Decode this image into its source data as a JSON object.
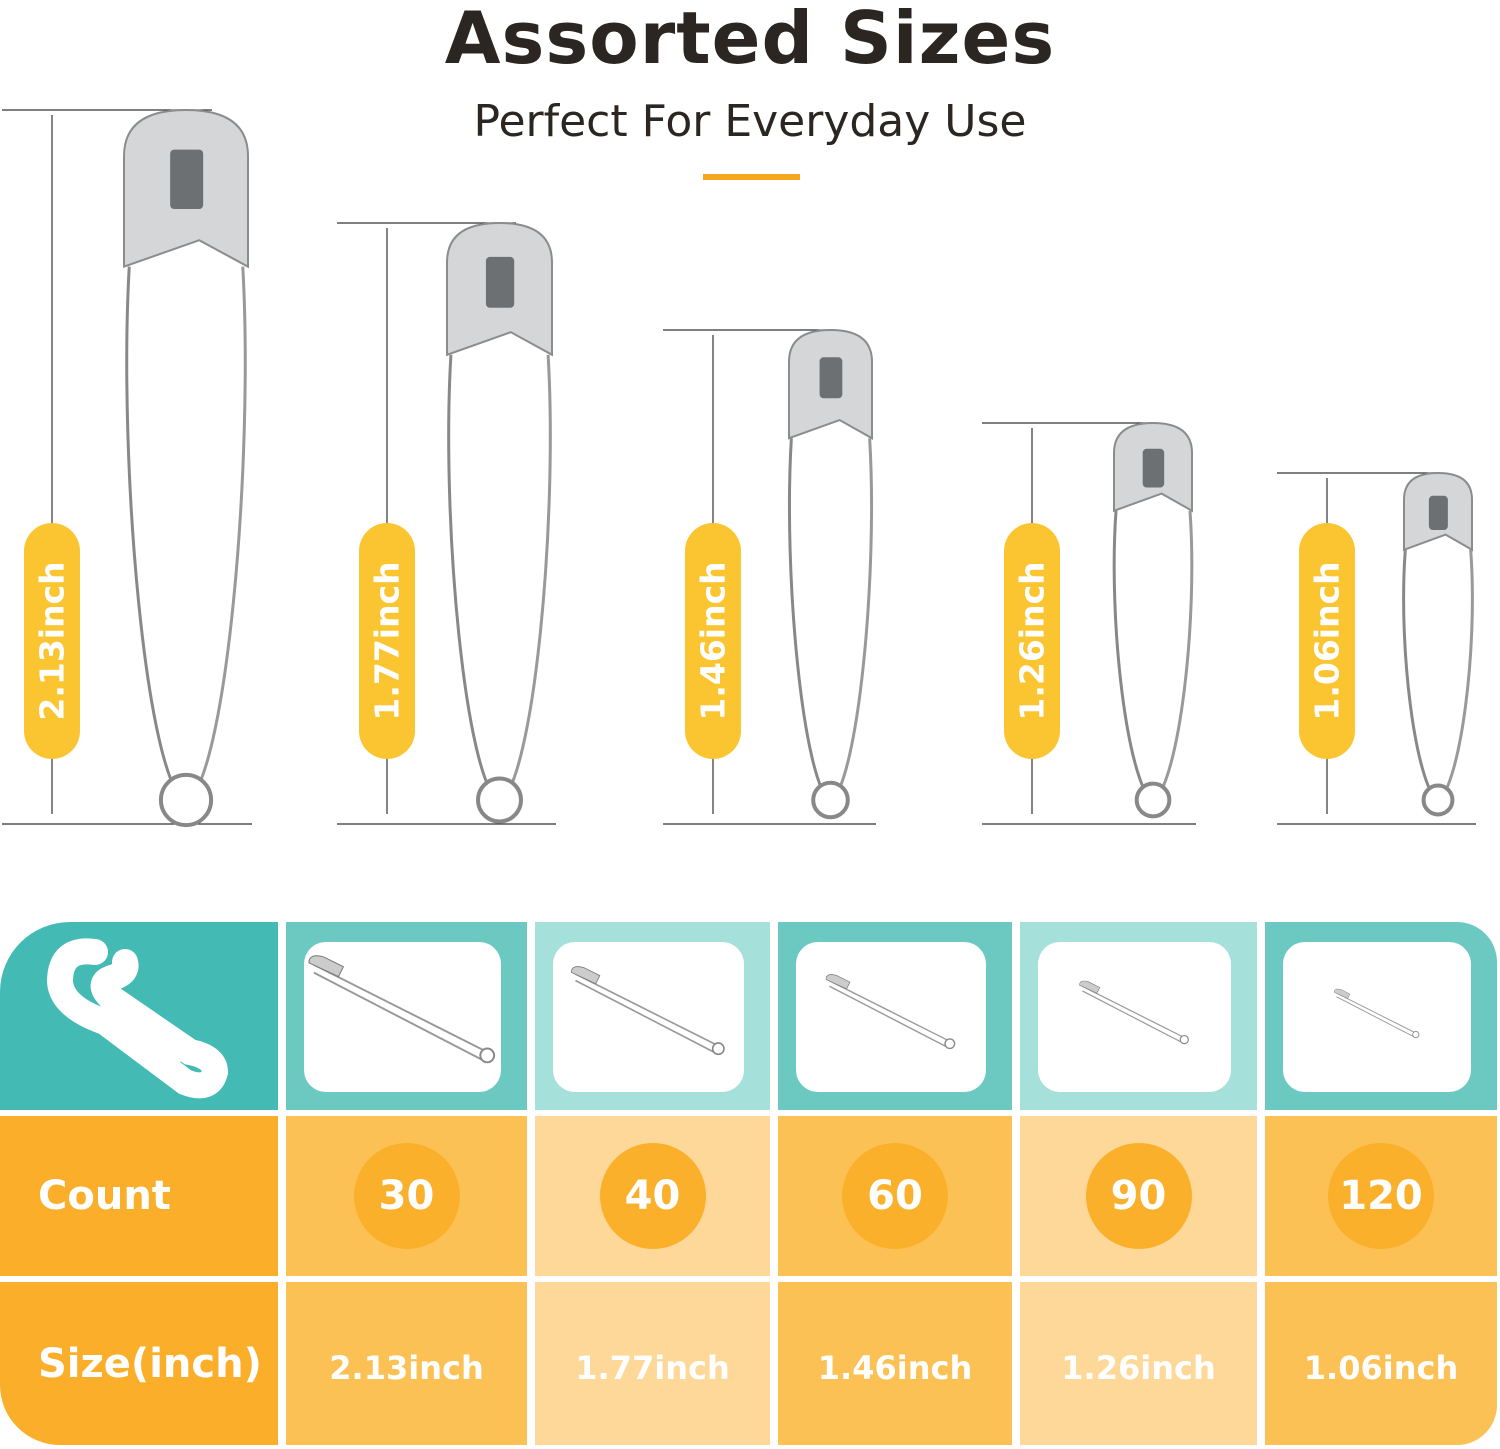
{
  "header": {
    "title": "Assorted Sizes",
    "subtitle": "Perfect For Everyday Use"
  },
  "colors": {
    "accent": "#f5a81e",
    "pill": "#fbc531",
    "teal": "#43bab3",
    "teal_mid": "#6cc9c2",
    "teal_light": "#a5e0da",
    "orange": "#fbae2a",
    "orange_mid": "#fcc155",
    "orange_light": "#fdd898",
    "circle": "#fbb02c"
  },
  "pins": [
    {
      "label": "2.13inch"
    },
    {
      "label": "1.77inch"
    },
    {
      "label": "1.46inch"
    },
    {
      "label": "1.26inch"
    },
    {
      "label": "1.06inch"
    }
  ],
  "table": {
    "header_icon": "safety-pin-icon",
    "count_label": "Count",
    "size_label": "Size(inch)",
    "columns": [
      {
        "count": "30",
        "size": "2.13inch"
      },
      {
        "count": "40",
        "size": "1.77inch"
      },
      {
        "count": "60",
        "size": "1.46inch"
      },
      {
        "count": "90",
        "size": "1.26inch"
      },
      {
        "count": "120",
        "size": "1.06inch"
      }
    ]
  }
}
